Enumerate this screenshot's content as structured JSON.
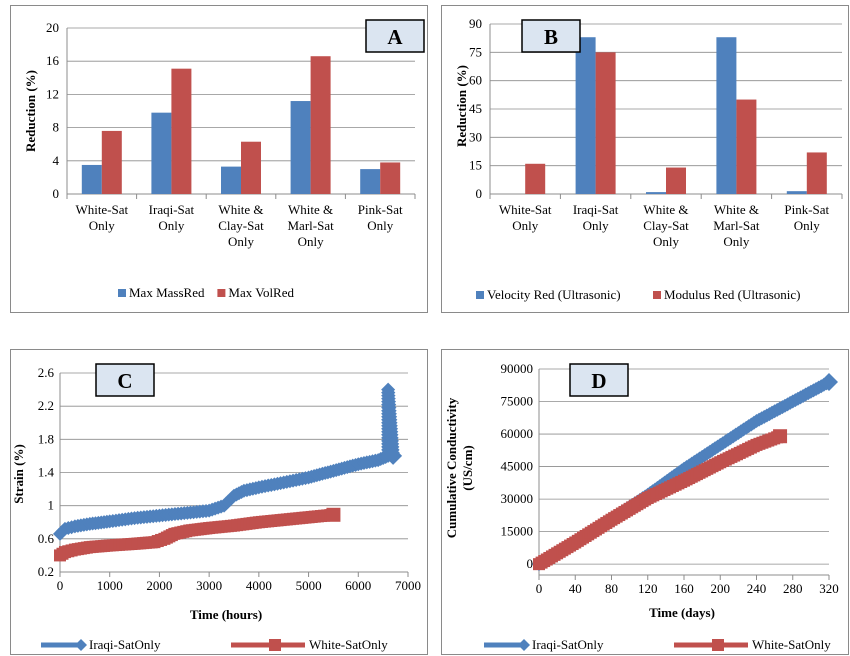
{
  "colors": {
    "blue": "#4f81bd",
    "red": "#c0504d",
    "label_box": "#dbe5f1"
  },
  "chart_data": [
    {
      "id": "A",
      "type": "bar",
      "panel_label": "A",
      "ylabel": "Reduction (%)",
      "xlabel": "",
      "ylim": [
        0,
        20
      ],
      "yticks": [
        0,
        4,
        8,
        12,
        16,
        20
      ],
      "categories": [
        [
          "White-Sat",
          "Only"
        ],
        [
          "Iraqi-Sat",
          "Only"
        ],
        [
          "White &",
          "Clay-Sat",
          "Only"
        ],
        [
          "White &",
          "Marl-Sat",
          "Only"
        ],
        [
          "Pink-Sat",
          "Only"
        ]
      ],
      "series": [
        {
          "name": "Max MassRed",
          "color": "#4f81bd",
          "values": [
            3.5,
            9.8,
            3.3,
            11.2,
            3.0
          ]
        },
        {
          "name": "Max VolRed",
          "color": "#c0504d",
          "values": [
            7.6,
            15.1,
            6.3,
            16.6,
            3.8
          ]
        }
      ],
      "legend": "bottom"
    },
    {
      "id": "B",
      "type": "bar",
      "panel_label": "B",
      "ylabel": "Reduction (%)",
      "xlabel": "",
      "ylim": [
        0,
        90
      ],
      "yticks": [
        0,
        15,
        30,
        45,
        60,
        75,
        90
      ],
      "categories": [
        [
          "White-Sat",
          "Only"
        ],
        [
          "Iraqi-Sat",
          "Only"
        ],
        [
          "White &",
          "Clay-Sat",
          "Only"
        ],
        [
          "White &",
          "Marl-Sat",
          "Only"
        ],
        [
          "Pink-Sat",
          "Only"
        ]
      ],
      "series": [
        {
          "name": "Velocity Red (Ultrasonic)",
          "color": "#4f81bd",
          "values": [
            0,
            83,
            1,
            83,
            1.5
          ]
        },
        {
          "name": "Modulus Red (Ultrasonic)",
          "color": "#c0504d",
          "values": [
            16,
            75,
            14,
            50,
            22
          ]
        }
      ],
      "legend": "bottom"
    },
    {
      "id": "C",
      "type": "line",
      "panel_label": "C",
      "ylabel": "Strain (%)",
      "xlabel": "Time (hours)",
      "xlim": [
        0,
        7000
      ],
      "xticks": [
        0,
        1000,
        2000,
        3000,
        4000,
        5000,
        6000,
        7000
      ],
      "ylim": [
        0.2,
        2.6
      ],
      "yticks": [
        0.2,
        0.6,
        1.0,
        1.4,
        1.8,
        2.2,
        2.6
      ],
      "ytick_labels": [
        "0.2",
        "0.6",
        "1",
        "1.4",
        "1.8",
        "2.2",
        "2.6"
      ],
      "series": [
        {
          "name": "Iraqi-SatOnly",
          "color": "#4f81bd",
          "marker": "diamond",
          "x": [
            0,
            100,
            300,
            600,
            1000,
            1500,
            2000,
            2500,
            3000,
            3300,
            3500,
            3700,
            4000,
            4500,
            5000,
            5500,
            6000,
            6400,
            6600,
            6600,
            6700
          ],
          "y": [
            0.66,
            0.72,
            0.75,
            0.78,
            0.81,
            0.85,
            0.88,
            0.91,
            0.94,
            1.0,
            1.12,
            1.18,
            1.22,
            1.28,
            1.34,
            1.42,
            1.5,
            1.55,
            1.6,
            2.4,
            1.6
          ]
        },
        {
          "name": "White-SatOnly",
          "color": "#c0504d",
          "marker": "square",
          "x": [
            0,
            100,
            300,
            600,
            1000,
            1500,
            1900,
            2100,
            2300,
            2600,
            3000,
            3500,
            4000,
            4500,
            5000,
            5500
          ],
          "y": [
            0.4,
            0.44,
            0.47,
            0.5,
            0.52,
            0.54,
            0.56,
            0.6,
            0.66,
            0.7,
            0.73,
            0.76,
            0.8,
            0.83,
            0.86,
            0.89
          ]
        }
      ],
      "legend": "bottom"
    },
    {
      "id": "D",
      "type": "line",
      "panel_label": "D",
      "ylabel_lines": [
        "Cumulative Conductivity",
        "(US/cm)"
      ],
      "xlabel": "Time (days)",
      "xlim": [
        0,
        320
      ],
      "xticks": [
        0,
        40,
        80,
        120,
        160,
        200,
        240,
        280,
        320
      ],
      "ylim": [
        -5000,
        90000
      ],
      "yticks": [
        0,
        15000,
        30000,
        45000,
        60000,
        75000,
        90000
      ],
      "series": [
        {
          "name": "Iraqi-SatOnly",
          "color": "#4f81bd",
          "marker": "diamond",
          "x": [
            0,
            40,
            80,
            120,
            160,
            200,
            240,
            280,
            320
          ],
          "y": [
            0,
            10000,
            21000,
            32000,
            44000,
            55000,
            66000,
            75000,
            84000
          ]
        },
        {
          "name": "White-SatOnly",
          "color": "#c0504d",
          "marker": "square",
          "x": [
            0,
            40,
            80,
            120,
            160,
            200,
            240,
            266
          ],
          "y": [
            0,
            10000,
            20500,
            30500,
            38500,
            47000,
            55000,
            59000
          ]
        }
      ],
      "legend": "bottom"
    }
  ]
}
